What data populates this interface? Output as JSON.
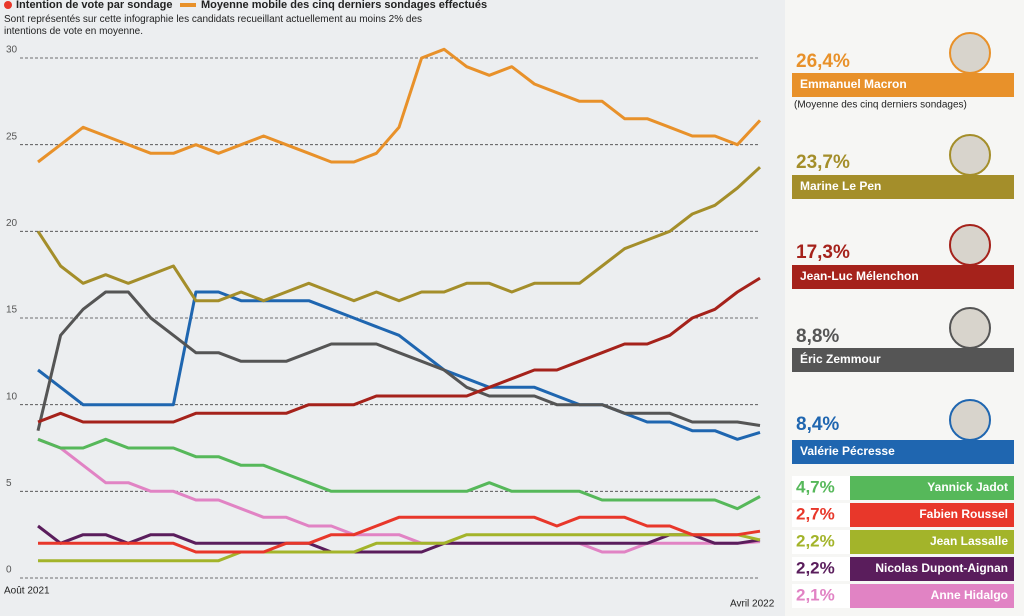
{
  "chart_data": {
    "type": "line",
    "legend": {
      "dots": "Intention de vote par sondage",
      "line": "Moyenne mobile des cinq derniers sondages effectués"
    },
    "subtitle": "Sont représentés sur cette infographie les candidats recueillant actuellement au moins 2% des intentions de vote en moyenne.",
    "note": "(Moyenne des cinq derniers sondages)",
    "categories": [
      "Août 2021",
      null,
      null,
      null,
      null,
      null,
      null,
      null,
      null,
      null,
      null,
      null,
      null,
      null,
      null,
      null,
      null,
      null,
      null,
      null,
      null,
      null,
      null,
      null,
      null,
      null,
      null,
      null,
      null,
      null,
      null,
      null,
      "Avril 2022"
    ],
    "ylim": [
      0,
      30
    ],
    "yticks": [
      0,
      5,
      10,
      15,
      20,
      25,
      30
    ],
    "grid": true,
    "series": [
      {
        "name": "Emmanuel Macron",
        "color": "#e8912a",
        "values": [
          24,
          25,
          26,
          25.5,
          25,
          24.5,
          24.5,
          25,
          24.5,
          25,
          25.5,
          25,
          24.5,
          24,
          24,
          24.5,
          26,
          30,
          30.5,
          29.5,
          29,
          29.5,
          28.5,
          28,
          27.5,
          27.5,
          26.5,
          26.5,
          26,
          25.5,
          25.5,
          25,
          26.4
        ],
        "value_labels": [
          null,
          null,
          null,
          null,
          null,
          null,
          null,
          null,
          null,
          null,
          null,
          null,
          null,
          null,
          null,
          null,
          null,
          null,
          null,
          null,
          null,
          null,
          null,
          null,
          null,
          null,
          null,
          null,
          null,
          null,
          null,
          null,
          "26,4%"
        ]
      },
      {
        "name": "Marine Le Pen",
        "color": "#a48e2a",
        "values": [
          20,
          18,
          17,
          17.5,
          17,
          17.5,
          18,
          16,
          16,
          16.5,
          16,
          16.5,
          17,
          16.5,
          16,
          16.5,
          16,
          16.5,
          16.5,
          17,
          17,
          16.5,
          17,
          17,
          17,
          18,
          19,
          19.5,
          20,
          21,
          21.5,
          22.5,
          23.7
        ],
        "value_labels": [
          null,
          null,
          null,
          null,
          null,
          null,
          null,
          null,
          null,
          null,
          null,
          null,
          null,
          null,
          null,
          null,
          null,
          null,
          null,
          null,
          null,
          null,
          null,
          null,
          null,
          null,
          null,
          null,
          null,
          null,
          null,
          null,
          "23,7%"
        ]
      },
      {
        "name": "Jean-Luc Mélenchon",
        "color": "#a5221b",
        "values": [
          9,
          9.5,
          9,
          9,
          9,
          9,
          9,
          9.5,
          9.5,
          9.5,
          9.5,
          9.5,
          10,
          10,
          10,
          10.5,
          10.5,
          10.5,
          10.5,
          10.5,
          11,
          11.5,
          12,
          12,
          12.5,
          13,
          13.5,
          13.5,
          14,
          15,
          15.5,
          16.5,
          17.3
        ],
        "value_labels": [
          null,
          null,
          null,
          null,
          null,
          null,
          null,
          null,
          null,
          null,
          null,
          null,
          null,
          null,
          null,
          null,
          null,
          null,
          null,
          null,
          null,
          null,
          null,
          null,
          null,
          null,
          null,
          null,
          null,
          null,
          null,
          null,
          "17,3%"
        ]
      },
      {
        "name": "Éric Zemmour",
        "color": "#555555",
        "values": [
          8.5,
          14,
          15.5,
          16.5,
          16.5,
          15,
          14,
          13,
          13,
          12.5,
          12.5,
          12.5,
          13,
          13.5,
          13.5,
          13.5,
          13,
          12.5,
          12,
          11,
          10.5,
          10.5,
          10.5,
          10,
          10,
          10,
          9.5,
          9.5,
          9.5,
          9,
          9,
          9,
          8.8
        ],
        "value_labels": [
          null,
          null,
          null,
          null,
          null,
          null,
          null,
          null,
          null,
          null,
          null,
          null,
          null,
          null,
          null,
          null,
          null,
          null,
          null,
          null,
          null,
          null,
          null,
          null,
          null,
          null,
          null,
          null,
          null,
          null,
          null,
          null,
          "8,8%"
        ]
      },
      {
        "name": "Valérie Pécresse",
        "color": "#1f66b0",
        "values": [
          12,
          11,
          10,
          10,
          10,
          10,
          10,
          16.5,
          16.5,
          16,
          16,
          16,
          16,
          15.5,
          15,
          14.5,
          14,
          13,
          12,
          11.5,
          11,
          11,
          11,
          10.5,
          10,
          10,
          9.5,
          9,
          9,
          8.5,
          8.5,
          8,
          8.4
        ],
        "value_labels": [
          null,
          null,
          null,
          null,
          null,
          null,
          null,
          null,
          null,
          null,
          null,
          null,
          null,
          null,
          null,
          null,
          null,
          null,
          null,
          null,
          null,
          null,
          null,
          null,
          null,
          null,
          null,
          null,
          null,
          null,
          null,
          null,
          "8,4%"
        ]
      },
      {
        "name": "Yannick Jadot",
        "color": "#56b85a",
        "values": [
          8,
          7.5,
          7.5,
          8,
          7.5,
          7.5,
          7.5,
          7,
          7,
          6.5,
          6.5,
          6,
          5.5,
          5,
          5,
          5,
          5,
          5,
          5,
          5,
          5.5,
          5,
          5,
          5,
          5,
          4.5,
          4.5,
          4.5,
          4.5,
          4.5,
          4.5,
          4,
          4.7
        ],
        "value_labels": [
          null,
          null,
          null,
          null,
          null,
          null,
          null,
          null,
          null,
          null,
          null,
          null,
          null,
          null,
          null,
          null,
          null,
          null,
          null,
          null,
          null,
          null,
          null,
          null,
          null,
          null,
          null,
          null,
          null,
          null,
          null,
          null,
          "4,7%"
        ]
      },
      {
        "name": "Fabien Roussel",
        "color": "#e8372a",
        "values": [
          2,
          2,
          2,
          2,
          2,
          2,
          2,
          1.5,
          1.5,
          1.5,
          1.5,
          2,
          2,
          2.5,
          2.5,
          3,
          3.5,
          3.5,
          3.5,
          3.5,
          3.5,
          3.5,
          3.5,
          3,
          3.5,
          3.5,
          3.5,
          3,
          3,
          2.5,
          2.5,
          2.5,
          2.7
        ],
        "value_labels": [
          null,
          null,
          null,
          null,
          null,
          null,
          null,
          null,
          null,
          null,
          null,
          null,
          null,
          null,
          null,
          null,
          null,
          null,
          null,
          null,
          null,
          null,
          null,
          null,
          null,
          null,
          null,
          null,
          null,
          null,
          null,
          null,
          "2,7%"
        ]
      },
      {
        "name": "Jean Lassalle",
        "color": "#a3b42a",
        "values": [
          1,
          1,
          1,
          1,
          1,
          1,
          1,
          1,
          1,
          1.5,
          1.5,
          1.5,
          1.5,
          1.5,
          1.5,
          2,
          2,
          2,
          2,
          2.5,
          2.5,
          2.5,
          2.5,
          2.5,
          2.5,
          2.5,
          2.5,
          2.5,
          2.5,
          2.5,
          2.5,
          2.5,
          2.2
        ],
        "value_labels": [
          null,
          null,
          null,
          null,
          null,
          null,
          null,
          null,
          null,
          null,
          null,
          null,
          null,
          null,
          null,
          null,
          null,
          null,
          null,
          null,
          null,
          null,
          null,
          null,
          null,
          null,
          null,
          null,
          null,
          null,
          null,
          null,
          "2,2%"
        ]
      },
      {
        "name": "Nicolas Dupont-Aignan",
        "color": "#5a1d5c",
        "values": [
          3,
          2,
          2.5,
          2.5,
          2,
          2.5,
          2.5,
          2,
          2,
          2,
          2,
          2,
          2,
          1.5,
          1.5,
          1.5,
          1.5,
          1.5,
          2,
          2,
          2,
          2,
          2,
          2,
          2,
          2,
          2,
          2,
          2.5,
          2.5,
          2,
          2,
          2.2
        ],
        "value_labels": [
          null,
          null,
          null,
          null,
          null,
          null,
          null,
          null,
          null,
          null,
          null,
          null,
          null,
          null,
          null,
          null,
          null,
          null,
          null,
          null,
          null,
          null,
          null,
          null,
          null,
          null,
          null,
          null,
          null,
          null,
          null,
          null,
          "2,2%"
        ]
      },
      {
        "name": "Anne Hidalgo",
        "color": "#e183c4",
        "values": [
          8,
          7.5,
          6.5,
          5.5,
          5.5,
          5,
          5,
          4.5,
          4.5,
          4,
          3.5,
          3.5,
          3,
          3,
          2.5,
          2.5,
          2.5,
          2,
          2,
          2,
          2,
          2,
          2,
          2,
          2,
          1.5,
          1.5,
          2,
          2,
          2,
          2,
          2,
          2.1
        ],
        "value_labels": [
          null,
          null,
          null,
          null,
          null,
          null,
          null,
          null,
          null,
          null,
          null,
          null,
          null,
          null,
          null,
          null,
          null,
          null,
          null,
          null,
          null,
          null,
          null,
          null,
          null,
          null,
          null,
          null,
          null,
          null,
          null,
          null,
          "2,1%"
        ]
      }
    ]
  }
}
